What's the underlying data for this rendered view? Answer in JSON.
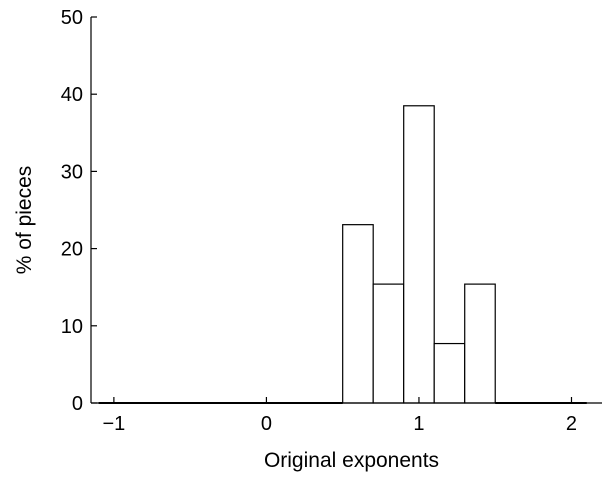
{
  "chart_data": {
    "type": "bar",
    "title": "",
    "xlabel": "Original exponents",
    "ylabel": "% of pieces",
    "xlim": [
      -1.15,
      2.2
    ],
    "ylim": [
      0,
      50
    ],
    "xticks": [
      -1,
      0,
      1,
      2
    ],
    "xtick_labels": [
      "−1",
      "0",
      "1",
      "2"
    ],
    "yticks": [
      0,
      10,
      20,
      30,
      40,
      50
    ],
    "ytick_labels": [
      "0",
      "10",
      "20",
      "30",
      "40",
      "50"
    ],
    "grid": false,
    "bins": [
      {
        "x0": 0.5,
        "x1": 0.7,
        "value": 23.1
      },
      {
        "x0": 0.7,
        "x1": 0.9,
        "value": 15.4
      },
      {
        "x0": 0.9,
        "x1": 1.1,
        "value": 38.5
      },
      {
        "x0": 1.1,
        "x1": 1.3,
        "value": 7.7
      },
      {
        "x0": 1.3,
        "x1": 1.5,
        "value": 15.4
      }
    ],
    "zero_segments": [
      [
        -1.1,
        0.5
      ],
      [
        1.5,
        2.1
      ]
    ]
  }
}
